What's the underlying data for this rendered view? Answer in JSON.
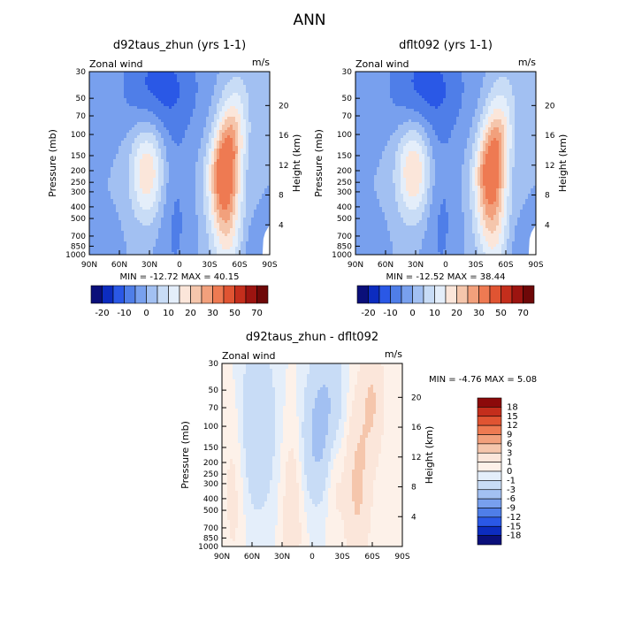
{
  "page_title": "ANN",
  "chart_data": [
    {
      "type": "heatmap",
      "subtype": "filled-contour latitude-pressure cross section",
      "title": "d92taus_zhun (yrs 1-1)",
      "left_label": "Zonal wind",
      "units": "m/s",
      "ylabel": "Pressure (mb)",
      "ylabel_right": "Height (km)",
      "x_ticks": [
        "90N",
        "60N",
        "30N",
        "0",
        "30S",
        "60S",
        "90S"
      ],
      "y_ticks": [
        "30",
        "50",
        "70",
        "100",
        "150",
        "200",
        "250",
        "300",
        "400",
        "500",
        "700",
        "850",
        "1000"
      ],
      "y_ticks_right": [
        "4",
        "8",
        "12",
        "16",
        "20"
      ],
      "y_scale": "log",
      "y_range": [
        1000,
        30
      ],
      "x_range": [
        90,
        -90
      ],
      "stats": "MIN = -12.72   MAX = 40.15",
      "min": -12.72,
      "max": 40.15,
      "colorbar_labels": [
        "-20",
        "-10",
        "0",
        "10",
        "20",
        "30",
        "50",
        "70"
      ],
      "colorbar_colors": [
        "#0a0f7a",
        "#0c2cbf",
        "#2a58e6",
        "#4f7ee8",
        "#78a0ee",
        "#a2c0f2",
        "#c8dcf6",
        "#e4eefa",
        "#fbe6da",
        "#f5c6ac",
        "#f2a07c",
        "#ee7a52",
        "#e05432",
        "#c42e1c",
        "#9c1410",
        "#6e0808"
      ],
      "features": {
        "nh_jet": {
          "lat": 32,
          "pressure": 200,
          "peak": 20
        },
        "sh_jet": {
          "lat": -45,
          "pressure": 200,
          "peak": 40
        },
        "strat_easterly": {
          "lat": 20,
          "pressure": 40,
          "peak": -12
        }
      }
    },
    {
      "type": "heatmap",
      "subtype": "filled-contour latitude-pressure cross section",
      "title": "dflt092 (yrs 1-1)",
      "left_label": "Zonal wind",
      "units": "m/s",
      "ylabel": "Pressure (mb)",
      "ylabel_right": "Height (km)",
      "x_ticks": [
        "90N",
        "60N",
        "30N",
        "0",
        "30S",
        "60S",
        "90S"
      ],
      "y_ticks": [
        "30",
        "50",
        "70",
        "100",
        "150",
        "200",
        "250",
        "300",
        "400",
        "500",
        "700",
        "850",
        "1000"
      ],
      "y_ticks_right": [
        "4",
        "8",
        "12",
        "16",
        "20"
      ],
      "y_scale": "log",
      "y_range": [
        1000,
        30
      ],
      "x_range": [
        90,
        -90
      ],
      "stats": "MIN = -12.52   MAX = 38.44",
      "min": -12.52,
      "max": 38.44,
      "colorbar_labels": [
        "-20",
        "-10",
        "0",
        "10",
        "20",
        "30",
        "50",
        "70"
      ],
      "colorbar_colors": [
        "#0a0f7a",
        "#0c2cbf",
        "#2a58e6",
        "#4f7ee8",
        "#78a0ee",
        "#a2c0f2",
        "#c8dcf6",
        "#e4eefa",
        "#fbe6da",
        "#f5c6ac",
        "#f2a07c",
        "#ee7a52",
        "#e05432",
        "#c42e1c",
        "#9c1410",
        "#6e0808"
      ],
      "features": {
        "nh_jet": {
          "lat": 32,
          "pressure": 200,
          "peak": 21
        },
        "sh_jet": {
          "lat": -45,
          "pressure": 200,
          "peak": 38
        },
        "strat_easterly": {
          "lat": 20,
          "pressure": 40,
          "peak": -12
        }
      }
    },
    {
      "type": "heatmap",
      "subtype": "filled-contour difference cross section",
      "title": "d92taus_zhun - dflt092",
      "left_label": "Zonal wind",
      "units": "m/s",
      "ylabel": "Pressure (mb)",
      "ylabel_right": "Height (km)",
      "x_ticks": [
        "90N",
        "60N",
        "30N",
        "0",
        "30S",
        "60S",
        "90S"
      ],
      "y_ticks": [
        "30",
        "50",
        "70",
        "100",
        "150",
        "200",
        "250",
        "300",
        "400",
        "500",
        "700",
        "850",
        "1000"
      ],
      "y_ticks_right": [
        "4",
        "8",
        "12",
        "16",
        "20"
      ],
      "y_scale": "log",
      "y_range": [
        1000,
        30
      ],
      "x_range": [
        90,
        -90
      ],
      "stats": "MIN =   -4.76   MAX =    5.08",
      "min": -4.76,
      "max": 5.08,
      "colorbar_labels": [
        "18",
        "15",
        "12",
        "9",
        "6",
        "3",
        "1",
        "0",
        "-1",
        "-3",
        "-6",
        "-9",
        "-12",
        "-15",
        "-18"
      ],
      "colorbar_colors": [
        "#8c0a0a",
        "#c42e1c",
        "#e05432",
        "#ee7a52",
        "#f2a07c",
        "#f5c6ac",
        "#fbe6da",
        "#fdf1e9",
        "#e4eefa",
        "#c8dcf6",
        "#a2c0f2",
        "#78a0ee",
        "#4f7ee8",
        "#2a58e6",
        "#0c2cbf",
        "#0a0f7a"
      ]
    }
  ]
}
